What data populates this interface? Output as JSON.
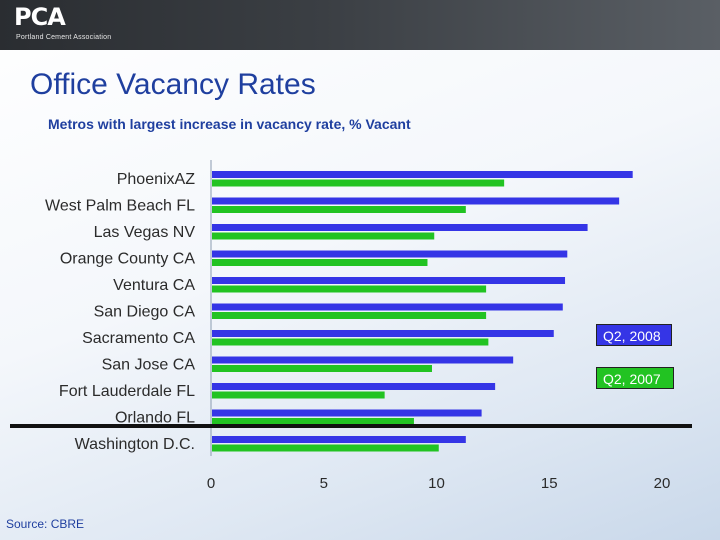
{
  "header": {
    "logo_text": "PCA",
    "logo_subtitle": "Portland Cement Association"
  },
  "title": "Office Vacancy Rates",
  "subtitle": "Metros with largest increase in vacancy rate, % Vacant",
  "source": "Source: CBRE",
  "colors": {
    "q2008": "#3535e6",
    "q2007": "#22c322"
  },
  "chart_data": {
    "type": "bar",
    "orientation": "horizontal",
    "categories": [
      "PhoenixAZ",
      "West Palm Beach FL",
      "Las Vegas NV",
      "Orange County CA",
      "Ventura CA",
      "San Diego CA",
      "Sacramento CA",
      "San Jose CA",
      "Fort Lauderdale FL",
      "Orlando FL",
      "Washington D.C."
    ],
    "series": [
      {
        "name": "Q2, 2008",
        "values": [
          18.7,
          18.1,
          16.7,
          15.8,
          15.7,
          15.6,
          15.2,
          13.4,
          12.6,
          12.0,
          11.3
        ]
      },
      {
        "name": "Q2, 2007",
        "values": [
          13.0,
          11.3,
          9.9,
          9.6,
          12.2,
          12.2,
          12.3,
          9.8,
          7.7,
          9.0,
          10.1
        ]
      }
    ],
    "xlim": [
      0,
      20
    ],
    "xticks": [
      "0",
      "5",
      "10",
      "15",
      "20"
    ],
    "legend_position": "right",
    "grid": false
  }
}
